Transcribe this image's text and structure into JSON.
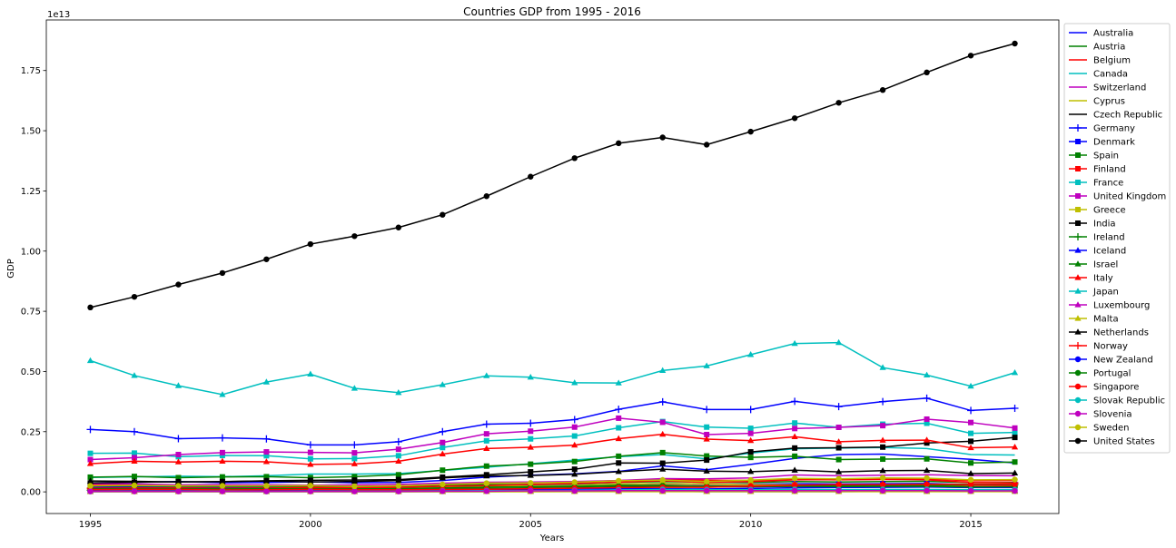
{
  "chart_data": {
    "type": "line",
    "title": "Countries GDP from 1995 - 2016",
    "xlabel": "Years",
    "ylabel": "GDP",
    "y_multiplier_label": "1e13",
    "y_multiplier": 10000000000000.0,
    "xlim": [
      1994.0,
      2017.0
    ],
    "ylim": [
      -0.09,
      1.96
    ],
    "x_ticks": [
      1995,
      2000,
      2005,
      2010,
      2015
    ],
    "y_ticks": [
      0.0,
      0.25,
      0.5,
      0.75,
      1.0,
      1.25,
      1.5,
      1.75
    ],
    "y_tick_labels": [
      "0.00",
      "0.25",
      "0.50",
      "0.75",
      "1.00",
      "1.25",
      "1.50",
      "1.75"
    ],
    "grid": false,
    "legend_position": "outside-right",
    "x": [
      1995,
      1996,
      1997,
      1998,
      1999,
      2000,
      2001,
      2002,
      2003,
      2004,
      2005,
      2006,
      2007,
      2008,
      2009,
      2010,
      2011,
      2012,
      2013,
      2014,
      2015,
      2016
    ],
    "series": [
      {
        "name": "Australia",
        "color": "#0000ff",
        "marker": "none",
        "values": [
          0.037,
          0.04,
          0.043,
          0.038,
          0.039,
          0.042,
          0.038,
          0.039,
          0.047,
          0.061,
          0.069,
          0.075,
          0.085,
          0.108,
          0.092,
          0.114,
          0.139,
          0.155,
          0.157,
          0.146,
          0.135,
          0.12
        ]
      },
      {
        "name": "Austria",
        "color": "#008000",
        "marker": "none",
        "values": [
          0.024,
          0.024,
          0.021,
          0.022,
          0.022,
          0.02,
          0.02,
          0.021,
          0.026,
          0.03,
          0.031,
          0.033,
          0.039,
          0.043,
          0.04,
          0.039,
          0.043,
          0.041,
          0.043,
          0.044,
          0.038,
          0.039
        ]
      },
      {
        "name": "Belgium",
        "color": "#ff0000",
        "marker": "none",
        "values": [
          0.029,
          0.028,
          0.025,
          0.026,
          0.026,
          0.024,
          0.023,
          0.025,
          0.031,
          0.036,
          0.038,
          0.04,
          0.047,
          0.052,
          0.048,
          0.048,
          0.052,
          0.05,
          0.052,
          0.053,
          0.046,
          0.047
        ]
      },
      {
        "name": "Canada",
        "color": "#00bfbf",
        "marker": "none",
        "values": [
          0.06,
          0.062,
          0.065,
          0.063,
          0.067,
          0.074,
          0.074,
          0.076,
          0.089,
          0.102,
          0.117,
          0.132,
          0.146,
          0.155,
          0.137,
          0.161,
          0.179,
          0.182,
          0.184,
          0.18,
          0.155,
          0.153
        ]
      },
      {
        "name": "Switzerland",
        "color": "#bf00bf",
        "marker": "none",
        "values": [
          0.034,
          0.033,
          0.029,
          0.03,
          0.029,
          0.028,
          0.029,
          0.031,
          0.036,
          0.04,
          0.041,
          0.043,
          0.047,
          0.055,
          0.054,
          0.058,
          0.07,
          0.067,
          0.069,
          0.071,
          0.068,
          0.067
        ]
      },
      {
        "name": "Cyprus",
        "color": "#bfbf00",
        "marker": "none",
        "values": [
          0.001,
          0.001,
          0.001,
          0.001,
          0.001,
          0.001,
          0.001,
          0.001,
          0.002,
          0.002,
          0.002,
          0.002,
          0.002,
          0.003,
          0.003,
          0.003,
          0.003,
          0.002,
          0.002,
          0.002,
          0.002,
          0.002
        ]
      },
      {
        "name": "Czech Republic",
        "color": "#000000",
        "marker": "none",
        "values": [
          0.006,
          0.007,
          0.006,
          0.006,
          0.006,
          0.006,
          0.006,
          0.008,
          0.01,
          0.012,
          0.014,
          0.016,
          0.019,
          0.024,
          0.021,
          0.021,
          0.023,
          0.021,
          0.021,
          0.021,
          0.019,
          0.02
        ]
      },
      {
        "name": "Germany",
        "color": "#0000ff",
        "marker": "plus",
        "values": [
          0.259,
          0.25,
          0.221,
          0.224,
          0.22,
          0.195,
          0.195,
          0.208,
          0.25,
          0.281,
          0.285,
          0.3,
          0.343,
          0.374,
          0.342,
          0.342,
          0.376,
          0.354,
          0.375,
          0.389,
          0.338,
          0.347
        ]
      },
      {
        "name": "Denmark",
        "color": "#0000ff",
        "marker": "square",
        "values": [
          0.019,
          0.019,
          0.017,
          0.017,
          0.017,
          0.016,
          0.016,
          0.017,
          0.022,
          0.025,
          0.026,
          0.028,
          0.031,
          0.035,
          0.032,
          0.032,
          0.034,
          0.033,
          0.034,
          0.035,
          0.03,
          0.031
        ]
      },
      {
        "name": "Spain",
        "color": "#008000",
        "marker": "square",
        "values": [
          0.061,
          0.064,
          0.059,
          0.062,
          0.063,
          0.059,
          0.063,
          0.071,
          0.09,
          0.107,
          0.115,
          0.126,
          0.148,
          0.163,
          0.149,
          0.143,
          0.148,
          0.134,
          0.136,
          0.137,
          0.12,
          0.124
        ]
      },
      {
        "name": "Finland",
        "color": "#ff0000",
        "marker": "square",
        "values": [
          0.013,
          0.013,
          0.013,
          0.014,
          0.014,
          0.013,
          0.013,
          0.014,
          0.017,
          0.02,
          0.02,
          0.022,
          0.026,
          0.028,
          0.025,
          0.025,
          0.027,
          0.026,
          0.027,
          0.027,
          0.023,
          0.024
        ]
      },
      {
        "name": "France",
        "color": "#00bfbf",
        "marker": "square",
        "values": [
          0.16,
          0.161,
          0.146,
          0.151,
          0.15,
          0.137,
          0.138,
          0.15,
          0.184,
          0.212,
          0.22,
          0.232,
          0.266,
          0.292,
          0.269,
          0.264,
          0.286,
          0.268,
          0.281,
          0.285,
          0.243,
          0.247
        ]
      },
      {
        "name": "United Kingdom",
        "color": "#bf00bf",
        "marker": "square",
        "values": [
          0.134,
          0.142,
          0.155,
          0.163,
          0.166,
          0.164,
          0.162,
          0.177,
          0.205,
          0.241,
          0.252,
          0.269,
          0.306,
          0.289,
          0.238,
          0.243,
          0.263,
          0.268,
          0.275,
          0.302,
          0.288,
          0.265
        ]
      },
      {
        "name": "Greece",
        "color": "#bfbf00",
        "marker": "square",
        "values": [
          0.013,
          0.014,
          0.014,
          0.014,
          0.014,
          0.013,
          0.013,
          0.015,
          0.02,
          0.024,
          0.025,
          0.027,
          0.032,
          0.035,
          0.033,
          0.03,
          0.029,
          0.025,
          0.024,
          0.024,
          0.02,
          0.019
        ]
      },
      {
        "name": "India",
        "color": "#000000",
        "marker": "square",
        "values": [
          0.037,
          0.04,
          0.042,
          0.042,
          0.046,
          0.048,
          0.049,
          0.051,
          0.061,
          0.071,
          0.083,
          0.094,
          0.12,
          0.119,
          0.132,
          0.166,
          0.182,
          0.183,
          0.186,
          0.203,
          0.21,
          0.226
        ]
      },
      {
        "name": "Ireland",
        "color": "#008000",
        "marker": "plus",
        "values": [
          0.007,
          0.007,
          0.008,
          0.009,
          0.01,
          0.01,
          0.011,
          0.013,
          0.016,
          0.019,
          0.021,
          0.023,
          0.027,
          0.027,
          0.023,
          0.022,
          0.023,
          0.022,
          0.024,
          0.026,
          0.029,
          0.03
        ]
      },
      {
        "name": "Iceland",
        "color": "#0000ff",
        "marker": "triangle",
        "values": [
          0.001,
          0.001,
          0.001,
          0.001,
          0.001,
          0.001,
          0.001,
          0.001,
          0.001,
          0.001,
          0.002,
          0.002,
          0.002,
          0.002,
          0.001,
          0.001,
          0.001,
          0.001,
          0.002,
          0.002,
          0.002,
          0.002
        ]
      },
      {
        "name": "Israel",
        "color": "#008000",
        "marker": "triangle",
        "values": [
          0.01,
          0.011,
          0.011,
          0.011,
          0.011,
          0.013,
          0.013,
          0.012,
          0.013,
          0.013,
          0.014,
          0.015,
          0.017,
          0.021,
          0.021,
          0.023,
          0.026,
          0.026,
          0.029,
          0.031,
          0.03,
          0.032
        ]
      },
      {
        "name": "Italy",
        "color": "#ff0000",
        "marker": "triangle",
        "values": [
          0.117,
          0.127,
          0.124,
          0.127,
          0.125,
          0.114,
          0.116,
          0.127,
          0.157,
          0.18,
          0.185,
          0.194,
          0.221,
          0.239,
          0.219,
          0.213,
          0.229,
          0.208,
          0.214,
          0.215,
          0.183,
          0.186
        ]
      },
      {
        "name": "Japan",
        "color": "#00bfbf",
        "marker": "triangle",
        "values": [
          0.545,
          0.483,
          0.441,
          0.404,
          0.456,
          0.489,
          0.43,
          0.412,
          0.445,
          0.482,
          0.476,
          0.453,
          0.452,
          0.504,
          0.523,
          0.57,
          0.616,
          0.62,
          0.516,
          0.485,
          0.439,
          0.495
        ]
      },
      {
        "name": "Luxembourg",
        "color": "#bf00bf",
        "marker": "triangle",
        "values": [
          0.002,
          0.002,
          0.002,
          0.002,
          0.002,
          0.002,
          0.002,
          0.002,
          0.003,
          0.003,
          0.004,
          0.004,
          0.005,
          0.005,
          0.005,
          0.005,
          0.006,
          0.006,
          0.006,
          0.007,
          0.006,
          0.006
        ]
      },
      {
        "name": "Malta",
        "color": "#bfbf00",
        "marker": "triangle",
        "values": [
          0.0003,
          0.0003,
          0.0003,
          0.0004,
          0.0004,
          0.0004,
          0.0004,
          0.0004,
          0.0005,
          0.0006,
          0.0006,
          0.0007,
          0.0007,
          0.0008,
          0.0008,
          0.0008,
          0.0009,
          0.0009,
          0.001,
          0.001,
          0.001,
          0.0011
        ]
      },
      {
        "name": "Netherlands",
        "color": "#000000",
        "marker": "triangle",
        "values": [
          0.045,
          0.044,
          0.041,
          0.043,
          0.045,
          0.041,
          0.043,
          0.047,
          0.058,
          0.066,
          0.068,
          0.073,
          0.084,
          0.094,
          0.086,
          0.084,
          0.09,
          0.083,
          0.088,
          0.089,
          0.076,
          0.078
        ]
      },
      {
        "name": "Norway",
        "color": "#ff0000",
        "marker": "plus",
        "values": [
          0.015,
          0.016,
          0.016,
          0.015,
          0.016,
          0.017,
          0.017,
          0.019,
          0.023,
          0.026,
          0.031,
          0.035,
          0.04,
          0.046,
          0.039,
          0.043,
          0.05,
          0.051,
          0.052,
          0.05,
          0.039,
          0.037
        ]
      },
      {
        "name": "New Zealand",
        "color": "#0000ff",
        "marker": "circle",
        "values": [
          0.006,
          0.007,
          0.007,
          0.006,
          0.006,
          0.005,
          0.005,
          0.006,
          0.008,
          0.01,
          0.011,
          0.011,
          0.013,
          0.013,
          0.012,
          0.014,
          0.017,
          0.018,
          0.019,
          0.02,
          0.018,
          0.018
        ]
      },
      {
        "name": "Portugal",
        "color": "#008000",
        "marker": "circle",
        "values": [
          0.012,
          0.012,
          0.012,
          0.012,
          0.013,
          0.012,
          0.012,
          0.013,
          0.016,
          0.019,
          0.02,
          0.021,
          0.024,
          0.026,
          0.024,
          0.024,
          0.024,
          0.022,
          0.023,
          0.023,
          0.02,
          0.021
        ]
      },
      {
        "name": "Singapore",
        "color": "#ff0000",
        "marker": "circle",
        "values": [
          0.009,
          0.01,
          0.01,
          0.008,
          0.009,
          0.01,
          0.009,
          0.009,
          0.01,
          0.011,
          0.013,
          0.015,
          0.018,
          0.019,
          0.019,
          0.024,
          0.028,
          0.03,
          0.03,
          0.031,
          0.031,
          0.031
        ]
      },
      {
        "name": "Slovak Republic",
        "color": "#00bfbf",
        "marker": "circle",
        "values": [
          0.002,
          0.003,
          0.003,
          0.003,
          0.002,
          0.003,
          0.003,
          0.003,
          0.004,
          0.005,
          0.005,
          0.006,
          0.008,
          0.01,
          0.009,
          0.009,
          0.01,
          0.009,
          0.01,
          0.01,
          0.009,
          0.009
        ]
      },
      {
        "name": "Slovenia",
        "color": "#bf00bf",
        "marker": "circle",
        "values": [
          0.002,
          0.002,
          0.002,
          0.002,
          0.002,
          0.002,
          0.002,
          0.002,
          0.003,
          0.003,
          0.004,
          0.004,
          0.005,
          0.005,
          0.005,
          0.005,
          0.005,
          0.005,
          0.005,
          0.005,
          0.004,
          0.004
        ]
      },
      {
        "name": "Sweden",
        "color": "#bfbf00",
        "marker": "circle",
        "values": [
          0.025,
          0.027,
          0.025,
          0.025,
          0.025,
          0.026,
          0.023,
          0.025,
          0.031,
          0.036,
          0.037,
          0.04,
          0.046,
          0.049,
          0.043,
          0.049,
          0.056,
          0.054,
          0.058,
          0.057,
          0.05,
          0.051
        ]
      },
      {
        "name": "United States",
        "color": "#000000",
        "marker": "circle",
        "values": [
          0.766,
          0.81,
          0.861,
          0.909,
          0.966,
          1.029,
          1.062,
          1.098,
          1.151,
          1.228,
          1.309,
          1.386,
          1.448,
          1.472,
          1.442,
          1.496,
          1.552,
          1.616,
          1.669,
          1.742,
          1.812,
          1.862
        ]
      }
    ]
  }
}
